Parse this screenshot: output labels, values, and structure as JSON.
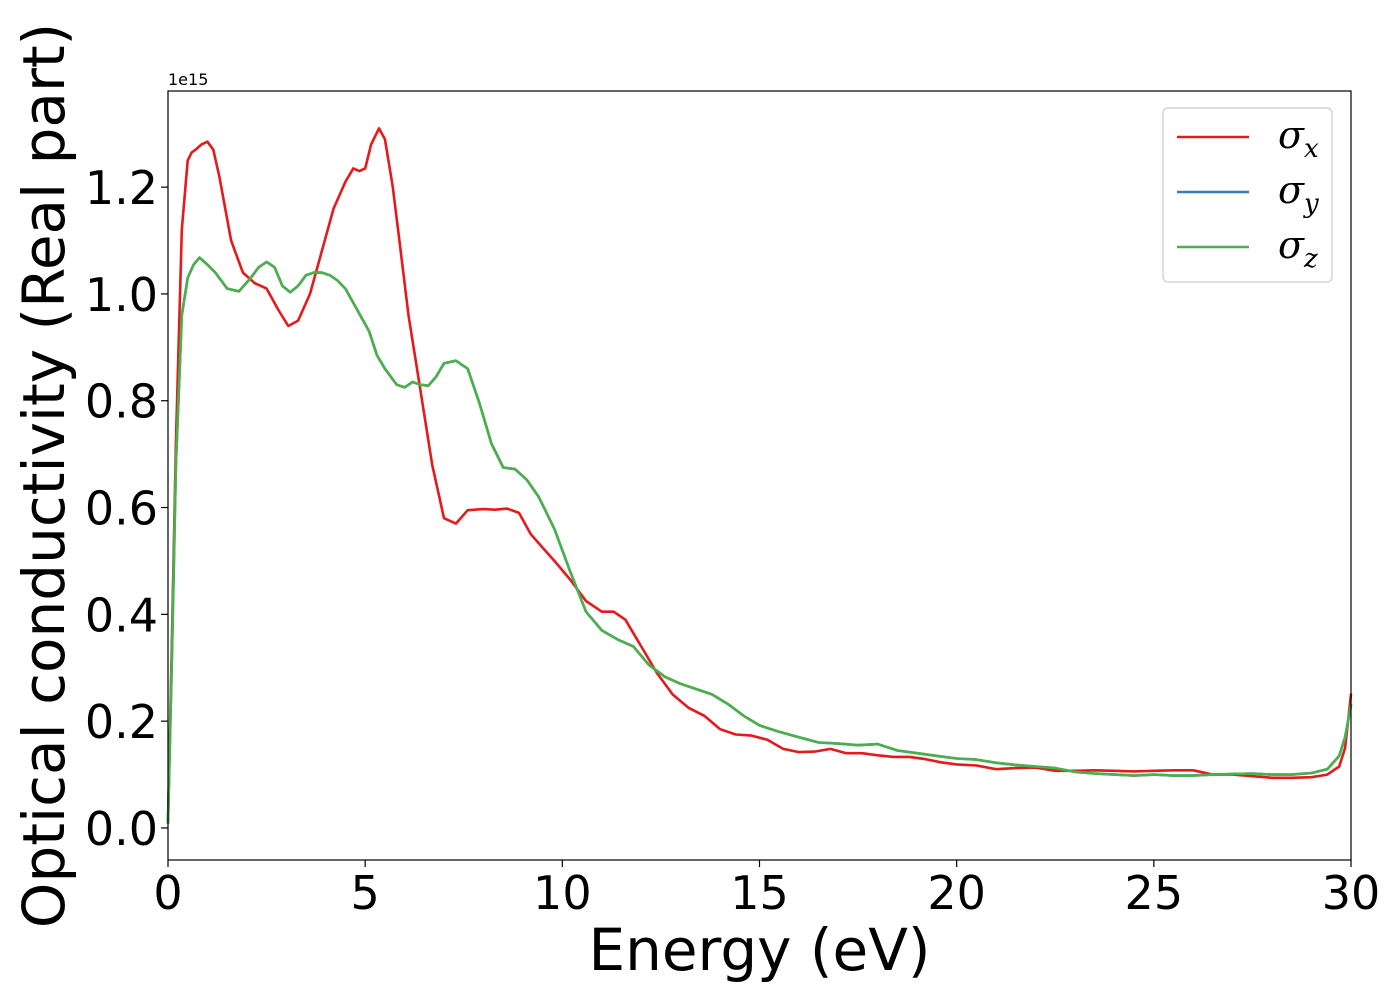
{
  "chart_data": {
    "type": "line",
    "xlabel": "Energy (eV)",
    "ylabel": "Optical conductivity (Real part)",
    "y_offset_text": "1e15",
    "xlim": [
      0,
      30
    ],
    "ylim": [
      -0.06,
      1.38
    ],
    "y_scale_factor": "1e15",
    "x_ticks": [
      0,
      5,
      10,
      15,
      20,
      25,
      30
    ],
    "y_ticks": [
      0.0,
      0.2,
      0.4,
      0.6,
      0.8,
      1.0,
      1.2
    ],
    "x_tick_labels": [
      "0",
      "5",
      "10",
      "15",
      "20",
      "25",
      "30"
    ],
    "y_tick_labels": [
      "0.0",
      "0.2",
      "0.4",
      "0.6",
      "0.8",
      "1.0",
      "1.2"
    ],
    "legend_position": "upper right",
    "grid": false,
    "series": [
      {
        "name": "σx",
        "symbol": "σ",
        "subscript": "x",
        "color": "#e41a1c",
        "x": [
          0,
          0.1,
          0.2,
          0.35,
          0.5,
          0.6,
          0.7,
          0.85,
          1.0,
          1.15,
          1.3,
          1.6,
          1.9,
          2.2,
          2.5,
          2.8,
          3.05,
          3.3,
          3.6,
          3.9,
          4.2,
          4.5,
          4.7,
          4.85,
          5.0,
          5.15,
          5.35,
          5.5,
          5.7,
          5.9,
          6.1,
          6.4,
          6.7,
          7.0,
          7.3,
          7.6,
          8.0,
          8.3,
          8.6,
          8.9,
          9.2,
          9.5,
          9.8,
          10.2,
          10.6,
          11.0,
          11.3,
          11.6,
          12.0,
          12.4,
          12.8,
          13.2,
          13.6,
          14.0,
          14.4,
          14.8,
          15.2,
          15.6,
          16.0,
          16.4,
          16.8,
          17.2,
          17.6,
          18.0,
          18.4,
          18.8,
          19.2,
          19.6,
          20.0,
          20.5,
          21.0,
          21.5,
          22.0,
          22.5,
          23.0,
          23.5,
          24.0,
          24.5,
          25.0,
          25.5,
          26.0,
          26.5,
          27.0,
          27.5,
          28.0,
          28.5,
          29.0,
          29.4,
          29.7,
          29.85,
          30.0
        ],
        "y": [
          0.01,
          0.35,
          0.72,
          1.12,
          1.25,
          1.265,
          1.27,
          1.28,
          1.285,
          1.27,
          1.22,
          1.1,
          1.04,
          1.02,
          1.01,
          0.97,
          0.94,
          0.95,
          1.0,
          1.08,
          1.16,
          1.21,
          1.235,
          1.23,
          1.235,
          1.28,
          1.31,
          1.29,
          1.2,
          1.08,
          0.96,
          0.82,
          0.68,
          0.58,
          0.57,
          0.595,
          0.597,
          0.596,
          0.598,
          0.59,
          0.55,
          0.525,
          0.5,
          0.465,
          0.425,
          0.405,
          0.405,
          0.39,
          0.34,
          0.29,
          0.25,
          0.225,
          0.21,
          0.185,
          0.175,
          0.173,
          0.165,
          0.148,
          0.142,
          0.143,
          0.148,
          0.14,
          0.14,
          0.136,
          0.133,
          0.133,
          0.129,
          0.123,
          0.119,
          0.117,
          0.11,
          0.112,
          0.113,
          0.107,
          0.107,
          0.108,
          0.107,
          0.106,
          0.107,
          0.108,
          0.108,
          0.1,
          0.1,
          0.097,
          0.094,
          0.094,
          0.095,
          0.1,
          0.115,
          0.15,
          0.25
        ]
      },
      {
        "name": "σy",
        "symbol": "σ",
        "subscript": "y",
        "color": "#377eb8",
        "x": [
          0,
          0.1,
          0.2,
          0.35,
          0.5,
          0.65,
          0.8,
          1.0,
          1.2,
          1.5,
          1.8,
          2.1,
          2.3,
          2.5,
          2.7,
          2.9,
          3.1,
          3.3,
          3.5,
          3.7,
          3.9,
          4.1,
          4.3,
          4.5,
          4.8,
          5.1,
          5.3,
          5.5,
          5.8,
          6.0,
          6.2,
          6.4,
          6.6,
          6.8,
          7.0,
          7.3,
          7.6,
          7.9,
          8.2,
          8.5,
          8.8,
          9.1,
          9.4,
          9.8,
          10.2,
          10.6,
          11.0,
          11.4,
          11.8,
          12.2,
          12.6,
          13.0,
          13.4,
          13.8,
          14.2,
          14.6,
          15.0,
          15.5,
          16.0,
          16.5,
          17.0,
          17.5,
          18.0,
          18.5,
          19.0,
          19.5,
          20.0,
          20.5,
          21.0,
          21.5,
          22.0,
          22.5,
          23.0,
          23.5,
          24.0,
          24.5,
          25.0,
          25.5,
          26.0,
          26.5,
          27.0,
          27.5,
          28.0,
          28.5,
          29.0,
          29.4,
          29.7,
          29.85,
          30.0
        ],
        "y": [
          0.01,
          0.32,
          0.68,
          0.96,
          1.03,
          1.055,
          1.068,
          1.055,
          1.04,
          1.01,
          1.005,
          1.03,
          1.05,
          1.06,
          1.05,
          1.015,
          1.003,
          1.015,
          1.035,
          1.04,
          1.04,
          1.035,
          1.025,
          1.01,
          0.97,
          0.93,
          0.885,
          0.86,
          0.83,
          0.825,
          0.835,
          0.83,
          0.828,
          0.845,
          0.87,
          0.875,
          0.86,
          0.795,
          0.72,
          0.675,
          0.672,
          0.652,
          0.62,
          0.56,
          0.48,
          0.405,
          0.37,
          0.353,
          0.34,
          0.305,
          0.283,
          0.27,
          0.26,
          0.25,
          0.232,
          0.21,
          0.192,
          0.18,
          0.17,
          0.16,
          0.158,
          0.155,
          0.157,
          0.145,
          0.14,
          0.135,
          0.13,
          0.128,
          0.122,
          0.118,
          0.115,
          0.112,
          0.105,
          0.102,
          0.1,
          0.098,
          0.1,
          0.098,
          0.098,
          0.1,
          0.101,
          0.102,
          0.1,
          0.1,
          0.103,
          0.11,
          0.135,
          0.17,
          0.23
        ]
      },
      {
        "name": "σz",
        "symbol": "σ",
        "subscript": "z",
        "color": "#4daf4a",
        "x": [
          0,
          0.1,
          0.2,
          0.35,
          0.5,
          0.65,
          0.8,
          1.0,
          1.2,
          1.5,
          1.8,
          2.1,
          2.3,
          2.5,
          2.7,
          2.9,
          3.1,
          3.3,
          3.5,
          3.7,
          3.9,
          4.1,
          4.3,
          4.5,
          4.8,
          5.1,
          5.3,
          5.5,
          5.8,
          6.0,
          6.2,
          6.4,
          6.6,
          6.8,
          7.0,
          7.3,
          7.6,
          7.9,
          8.2,
          8.5,
          8.8,
          9.1,
          9.4,
          9.8,
          10.2,
          10.6,
          11.0,
          11.4,
          11.8,
          12.2,
          12.6,
          13.0,
          13.4,
          13.8,
          14.2,
          14.6,
          15.0,
          15.5,
          16.0,
          16.5,
          17.0,
          17.5,
          18.0,
          18.5,
          19.0,
          19.5,
          20.0,
          20.5,
          21.0,
          21.5,
          22.0,
          22.5,
          23.0,
          23.5,
          24.0,
          24.5,
          25.0,
          25.5,
          26.0,
          26.5,
          27.0,
          27.5,
          28.0,
          28.5,
          29.0,
          29.4,
          29.7,
          29.85,
          30.0
        ],
        "y": [
          0.01,
          0.32,
          0.68,
          0.96,
          1.03,
          1.055,
          1.068,
          1.055,
          1.04,
          1.01,
          1.005,
          1.03,
          1.05,
          1.06,
          1.05,
          1.015,
          1.003,
          1.015,
          1.035,
          1.04,
          1.04,
          1.035,
          1.025,
          1.01,
          0.97,
          0.93,
          0.885,
          0.86,
          0.83,
          0.825,
          0.835,
          0.83,
          0.828,
          0.845,
          0.87,
          0.875,
          0.86,
          0.795,
          0.72,
          0.675,
          0.672,
          0.652,
          0.62,
          0.56,
          0.48,
          0.405,
          0.37,
          0.353,
          0.34,
          0.305,
          0.283,
          0.27,
          0.26,
          0.25,
          0.232,
          0.21,
          0.192,
          0.18,
          0.17,
          0.16,
          0.158,
          0.155,
          0.157,
          0.145,
          0.14,
          0.135,
          0.13,
          0.128,
          0.122,
          0.118,
          0.115,
          0.112,
          0.105,
          0.102,
          0.1,
          0.098,
          0.1,
          0.098,
          0.098,
          0.1,
          0.101,
          0.102,
          0.1,
          0.1,
          0.103,
          0.11,
          0.135,
          0.17,
          0.23
        ]
      }
    ]
  }
}
